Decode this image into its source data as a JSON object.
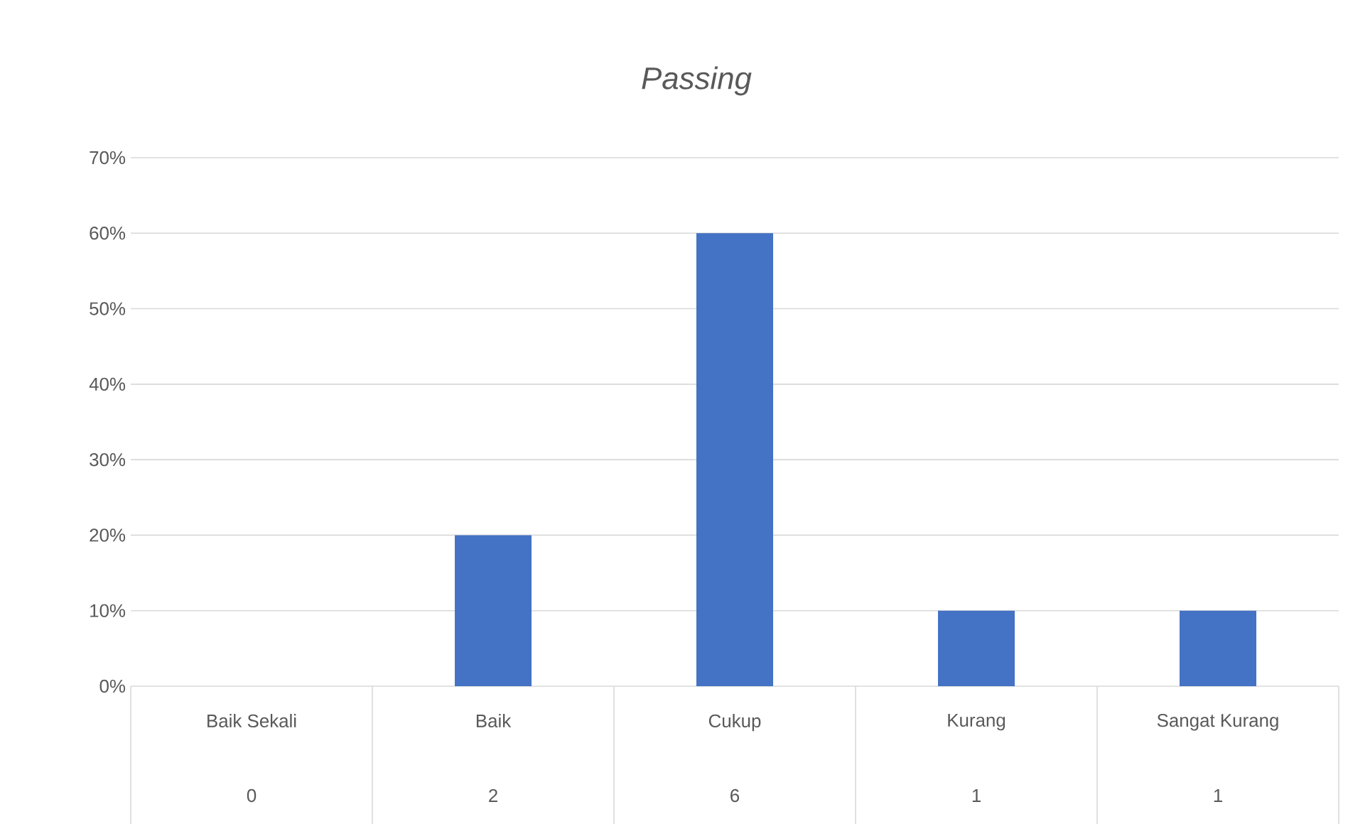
{
  "chart_data": {
    "type": "bar",
    "title": "Passing",
    "categories": [
      "Baik Sekali",
      "Baik",
      "Cukup",
      "Kurang",
      "Sangat Kurang"
    ],
    "values": [
      0,
      20,
      60,
      10,
      10
    ],
    "annotations": [
      "0",
      "2",
      "6",
      "1",
      "1"
    ],
    "color": "#4472c4",
    "ylim": [
      0,
      70
    ],
    "yticks": [
      {
        "value": 0,
        "label": "0%"
      },
      {
        "value": 10,
        "label": "10%"
      },
      {
        "value": 20,
        "label": "20%"
      },
      {
        "value": 30,
        "label": "30%"
      },
      {
        "value": 40,
        "label": "40%"
      },
      {
        "value": 50,
        "label": "50%"
      },
      {
        "value": 60,
        "label": "60%"
      },
      {
        "value": 70,
        "label": "70%"
      }
    ],
    "grid": "y"
  }
}
